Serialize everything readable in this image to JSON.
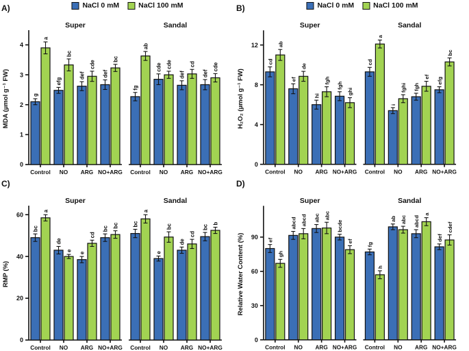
{
  "figure": {
    "background": "#FFFFFF",
    "legend": {
      "items": [
        {
          "label": "NaCl 0 mM",
          "color": "#3B6FB6"
        },
        {
          "label": "NaCl 100 mM",
          "color": "#A2D352"
        }
      ]
    },
    "colors": {
      "bar_blue": "#3B6FB6",
      "bar_green": "#A2D352",
      "bar_border": "#111111",
      "axis": "#111111",
      "text": "#111111"
    }
  },
  "chart_data": [
    {
      "id": "A",
      "panel_label": "A)",
      "type": "bar",
      "ylabel": "MDA (µmol g⁻¹ FW)",
      "ylim": [
        0,
        4.4
      ],
      "yticks": [
        0,
        1,
        2,
        3,
        4
      ],
      "categories": [
        "Control",
        "NO",
        "ARG",
        "NO+ARG"
      ],
      "series_names": [
        "NaCl 0 mM",
        "NaCl 100 mM"
      ],
      "legend_position": "top-center",
      "facets": [
        {
          "name": "Super",
          "series": [
            {
              "name": "NaCl 0 mM",
              "values": [
                2.1,
                2.48,
                2.62,
                2.67
              ],
              "errors": [
                0.1,
                0.1,
                0.15,
                0.16
              ],
              "letters": [
                "g",
                "efg",
                "def",
                "def"
              ]
            },
            {
              "name": "NaCl 100 mM",
              "values": [
                3.9,
                3.33,
                2.95,
                3.23
              ],
              "errors": [
                0.2,
                0.2,
                0.17,
                0.12
              ],
              "letters": [
                "a",
                "bc",
                "cde",
                "bc"
              ]
            }
          ]
        },
        {
          "name": "Sandal",
          "series": [
            {
              "name": "NaCl 0 mM",
              "values": [
                2.27,
                2.85,
                2.65,
                2.67
              ],
              "errors": [
                0.14,
                0.18,
                0.15,
                0.17
              ],
              "letters": [
                "fg",
                "cde",
                "def",
                "def"
              ]
            },
            {
              "name": "NaCl 100 mM",
              "values": [
                3.63,
                3.0,
                3.03,
                2.9
              ],
              "errors": [
                0.15,
                0.12,
                0.15,
                0.14
              ],
              "letters": [
                "ab",
                "cde",
                "cd",
                "cde"
              ]
            }
          ]
        }
      ]
    },
    {
      "id": "B",
      "panel_label": "B)",
      "type": "bar",
      "ylabel": "H₂O₂ (µmol g⁻¹ FW)",
      "ylim": [
        0,
        13.2
      ],
      "yticks": [
        0,
        4,
        8,
        12
      ],
      "categories": [
        "Control",
        "NO",
        "ARG",
        "NO+ARG"
      ],
      "series_names": [
        "NaCl 0 mM",
        "NaCl 100 mM"
      ],
      "legend_position": "top-center",
      "facets": [
        {
          "name": "Super",
          "series": [
            {
              "name": "NaCl 0 mM",
              "values": [
                9.3,
                7.6,
                6.0,
                6.85
              ],
              "errors": [
                0.5,
                0.5,
                0.45,
                0.45
              ],
              "letters": [
                "cd",
                "ef",
                "hi",
                "fgh"
              ]
            },
            {
              "name": "NaCl 100 mM",
              "values": [
                11.0,
                8.85,
                7.3,
                6.2
              ],
              "errors": [
                0.55,
                0.5,
                0.5,
                0.5
              ],
              "letters": [
                "ab",
                "de",
                "fgh",
                "ghi"
              ]
            }
          ]
        },
        {
          "name": "Sandal",
          "series": [
            {
              "name": "NaCl 0 mM",
              "values": [
                9.3,
                5.4,
                6.8,
                7.5
              ],
              "errors": [
                0.45,
                0.3,
                0.35,
                0.3
              ],
              "letters": [
                "cd",
                "i",
                "fgh",
                "efg"
              ]
            },
            {
              "name": "NaCl 100 mM",
              "values": [
                12.1,
                6.6,
                7.85,
                10.3
              ],
              "errors": [
                0.4,
                0.4,
                0.5,
                0.4
              ],
              "letters": [
                "a",
                "fghi",
                "ef",
                "bc"
              ]
            }
          ]
        }
      ]
    },
    {
      "id": "C",
      "panel_label": "C)",
      "type": "bar",
      "ylabel": "RMP (%)",
      "ylim": [
        0,
        63
      ],
      "yticks": [
        0,
        20,
        40,
        60
      ],
      "categories": [
        "Control",
        "NO",
        "ARG",
        "NO+ARG"
      ],
      "series_names": [
        "NaCl 0 mM",
        "NaCl 100 mM"
      ],
      "legend_position": "none",
      "facets": [
        {
          "name": "Super",
          "series": [
            {
              "name": "NaCl 0 mM",
              "values": [
                49,
                43,
                38.5,
                49
              ],
              "errors": [
                1.8,
                1.8,
                1.5,
                1.8
              ],
              "letters": [
                "bc",
                "de",
                "e",
                "bc"
              ]
            },
            {
              "name": "NaCl 100 mM",
              "values": [
                58.5,
                40,
                46.3,
                50.5
              ],
              "errors": [
                1.5,
                1.0,
                1.5,
                1.8
              ],
              "letters": [
                "a",
                "e",
                "cd",
                "bc"
              ]
            }
          ]
        },
        {
          "name": "Sandal",
          "series": [
            {
              "name": "NaCl 0 mM",
              "values": [
                51,
                39,
                43,
                49.5
              ],
              "errors": [
                2.0,
                1.2,
                1.5,
                2.0
              ],
              "letters": [
                "bc",
                "e",
                "de",
                "bc"
              ]
            },
            {
              "name": "NaCl 100 mM",
              "values": [
                58,
                49.3,
                46,
                52.5
              ],
              "errors": [
                2.0,
                2.5,
                2.2,
                1.5
              ],
              "letters": [
                "a",
                "bc",
                "cd",
                "b"
              ]
            }
          ]
        }
      ]
    },
    {
      "id": "D",
      "panel_label": "D)",
      "type": "bar",
      "ylabel": "Relative Water Content (%)",
      "ylim": [
        0,
        115
      ],
      "yticks": [
        0,
        30,
        60,
        90
      ],
      "categories": [
        "Control",
        "NO",
        "ARG",
        "NO+ARG"
      ],
      "series_names": [
        "NaCl 0 mM",
        "NaCl 100 mM"
      ],
      "legend_position": "none",
      "facets": [
        {
          "name": "Super",
          "series": [
            {
              "name": "NaCl 0 mM",
              "values": [
                80,
                91.5,
                97.5,
                90
              ],
              "errors": [
                3.5,
                3.5,
                3.5,
                2.5
              ],
              "letters": [
                "ef",
                "abcd",
                "abc",
                "bcde"
              ]
            },
            {
              "name": "NaCl 100 mM",
              "values": [
                67,
                93,
                98,
                79
              ],
              "errors": [
                3.5,
                4.5,
                5.0,
                3.5
              ],
              "letters": [
                "gh",
                "abcd",
                "abc",
                "ef"
              ]
            }
          ]
        },
        {
          "name": "Sandal",
          "series": [
            {
              "name": "NaCl 0 mM",
              "values": [
                77,
                99,
                93,
                81.5
              ],
              "errors": [
                2.5,
                2.5,
                3.5,
                2.5
              ],
              "letters": [
                "fg",
                "ab",
                "abcd",
                "def"
              ]
            },
            {
              "name": "NaCl 100 mM",
              "values": [
                57,
                96.5,
                103.5,
                87.5
              ],
              "errors": [
                3.5,
                3.0,
                3.5,
                4.5
              ],
              "letters": [
                "h",
                "abc",
                "a",
                "cdef"
              ]
            }
          ]
        }
      ]
    }
  ]
}
